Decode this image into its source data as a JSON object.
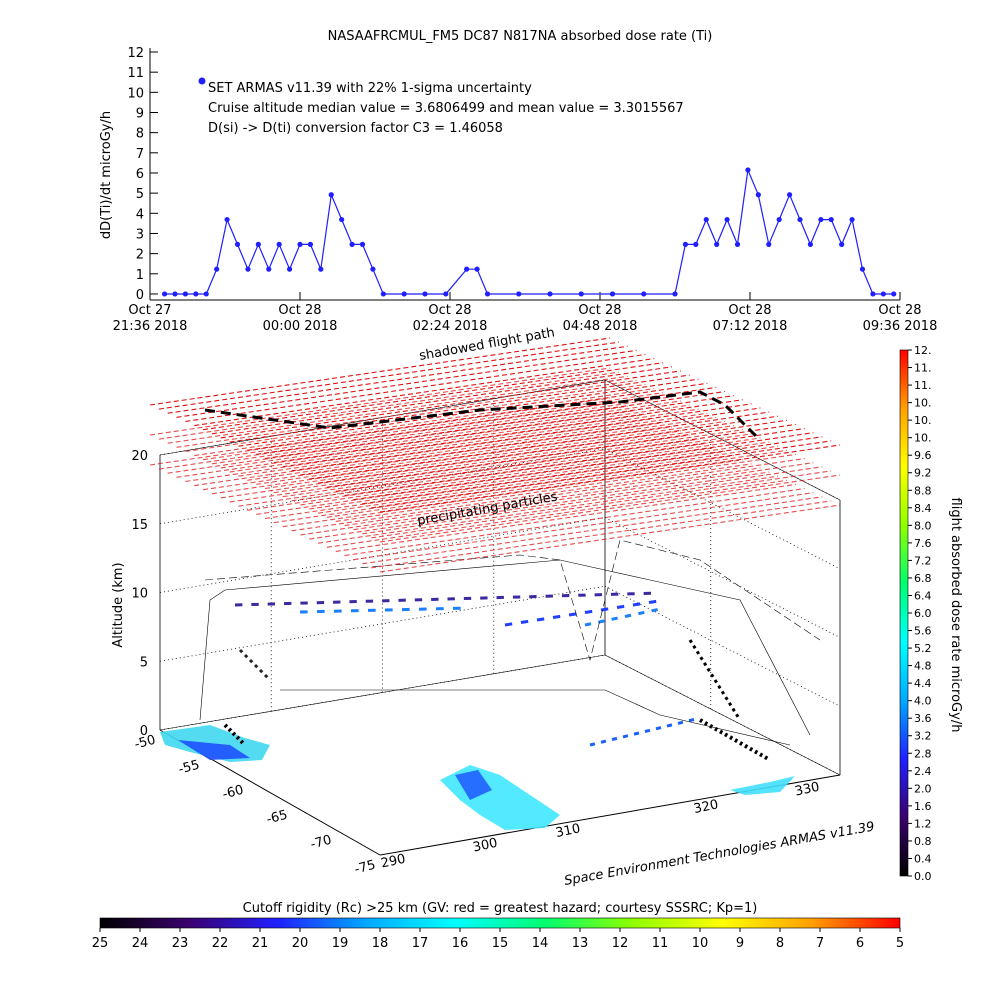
{
  "chart_data": [
    {
      "type": "line",
      "title": "NASAAFRCMUL_FM5 DC87 N817NA absorbed dose rate (Ti)",
      "y_label": "dD(Ti)/dt microGy/h",
      "annotations": [
        "SET ARMAS v11.39 with 22% 1-sigma uncertainty",
        "Cruise altitude median value = 3.6806499 and mean value = 3.3015567",
        "D(si) -> D(ti) conversion factor C3 = 1.46058"
      ],
      "color": "#1f1fff",
      "xlim": [
        "2018-10-27 21:36",
        "2018-10-28 09:36"
      ],
      "xticks": [
        {
          "value": "2018-10-27 21:36",
          "label": [
            "Oct 27",
            "21:36 2018"
          ]
        },
        {
          "value": "2018-10-28 00:00",
          "label": [
            "Oct 28",
            "00:00 2018"
          ]
        },
        {
          "value": "2018-10-28 02:24",
          "label": [
            "Oct 28",
            "02:24 2018"
          ]
        },
        {
          "value": "2018-10-28 04:48",
          "label": [
            "Oct 28",
            "04:48 2018"
          ]
        },
        {
          "value": "2018-10-28 07:12",
          "label": [
            "Oct 28",
            "07:12 2018"
          ]
        },
        {
          "value": "2018-10-28 09:36",
          "label": [
            "Oct 28",
            "09:36 2018"
          ]
        }
      ],
      "ylim": [
        -0.3,
        12
      ],
      "yticks": [
        0,
        1,
        2,
        3,
        4,
        5,
        6,
        7,
        8,
        9,
        10,
        11,
        12
      ],
      "x": [
        "2018-10-27 21:50",
        "2018-10-27 22:00",
        "2018-10-27 22:10",
        "2018-10-27 22:20",
        "2018-10-27 22:30",
        "2018-10-27 22:40",
        "2018-10-27 22:50",
        "2018-10-27 23:00",
        "2018-10-27 23:10",
        "2018-10-27 23:20",
        "2018-10-27 23:30",
        "2018-10-27 23:40",
        "2018-10-27 23:50",
        "2018-10-28 00:00",
        "2018-10-28 00:10",
        "2018-10-28 00:20",
        "2018-10-28 00:30",
        "2018-10-28 00:40",
        "2018-10-28 00:50",
        "2018-10-28 01:00",
        "2018-10-28 01:10",
        "2018-10-28 01:20",
        "2018-10-28 01:40",
        "2018-10-28 02:00",
        "2018-10-28 02:20",
        "2018-10-28 02:40",
        "2018-10-28 02:50",
        "2018-10-28 03:00",
        "2018-10-28 03:30",
        "2018-10-28 04:00",
        "2018-10-28 04:30",
        "2018-10-28 05:00",
        "2018-10-28 05:30",
        "2018-10-28 06:00",
        "2018-10-28 06:10",
        "2018-10-28 06:20",
        "2018-10-28 06:30",
        "2018-10-28 06:40",
        "2018-10-28 06:50",
        "2018-10-28 07:00",
        "2018-10-28 07:10",
        "2018-10-28 07:20",
        "2018-10-28 07:30",
        "2018-10-28 07:40",
        "2018-10-28 07:50",
        "2018-10-28 08:00",
        "2018-10-28 08:10",
        "2018-10-28 08:20",
        "2018-10-28 08:30",
        "2018-10-28 08:40",
        "2018-10-28 08:50",
        "2018-10-28 09:00",
        "2018-10-28 09:10",
        "2018-10-28 09:20",
        "2018-10-28 09:30"
      ],
      "values": [
        0,
        0,
        0,
        0,
        0,
        1.23,
        3.69,
        2.46,
        1.23,
        2.46,
        1.23,
        2.46,
        1.23,
        2.46,
        2.46,
        1.23,
        4.92,
        3.69,
        2.46,
        2.46,
        1.23,
        0,
        0,
        0,
        0,
        1.23,
        1.23,
        0,
        0,
        0,
        0,
        0,
        0,
        0,
        2.46,
        2.46,
        3.69,
        2.46,
        3.69,
        2.46,
        6.15,
        4.92,
        2.46,
        3.69,
        4.92,
        3.69,
        2.46,
        3.69,
        3.69,
        2.46,
        3.69,
        1.23,
        0,
        0,
        0
      ]
    },
    {
      "type": "scatter3d",
      "z_label": "Altitude (km)",
      "zticks": [
        0,
        5,
        10,
        15,
        20
      ],
      "lat_ticks": [
        -50,
        -55,
        -60,
        -65,
        -70,
        -75
      ],
      "lon_ticks": [
        290,
        300,
        310,
        320,
        330
      ],
      "annotations": [
        "shadowed flight path",
        "precipitating particles"
      ],
      "credit": "Space Environment Technologies ARMAS v11.39"
    },
    {
      "type": "colorbar",
      "title": "flight absorbed dose rate microGy/h",
      "colormap": [
        "#000000",
        "#3a006e",
        "#2020ff",
        "#00a8ff",
        "#00ffff",
        "#00ff70",
        "#90ff00",
        "#ffff00",
        "#ffa000",
        "#ff0000"
      ],
      "lim": [
        0,
        12
      ],
      "ticks": [
        {
          "value": 0,
          "label": "0.0"
        },
        {
          "value": 0.4,
          "label": "0.4"
        },
        {
          "value": 0.8,
          "label": "0.8"
        },
        {
          "value": 1.2,
          "label": "1.2"
        },
        {
          "value": 1.6,
          "label": "1.6"
        },
        {
          "value": 2,
          "label": "2.0"
        },
        {
          "value": 2.4,
          "label": "2.4"
        },
        {
          "value": 2.8,
          "label": "2.8"
        },
        {
          "value": 3.2,
          "label": "3.2"
        },
        {
          "value": 3.6,
          "label": "3.6"
        },
        {
          "value": 4,
          "label": "4.0"
        },
        {
          "value": 4.4,
          "label": "4.4"
        },
        {
          "value": 4.8,
          "label": "4.8"
        },
        {
          "value": 5.2,
          "label": "5.2"
        },
        {
          "value": 5.6,
          "label": "5.6"
        },
        {
          "value": 6,
          "label": "6.0"
        },
        {
          "value": 6.4,
          "label": "6.4"
        },
        {
          "value": 6.8,
          "label": "6.8"
        },
        {
          "value": 7.2,
          "label": "7.2"
        },
        {
          "value": 7.6,
          "label": "7.6"
        },
        {
          "value": 8,
          "label": "8.0"
        },
        {
          "value": 8.4,
          "label": "8.4"
        },
        {
          "value": 8.8,
          "label": "8.8"
        },
        {
          "value": 9.2,
          "label": "9.2"
        },
        {
          "value": 9.6,
          "label": "9.6"
        },
        {
          "value": 10,
          "label": "10."
        },
        {
          "value": 10.4,
          "label": "10."
        },
        {
          "value": 10.8,
          "label": "10."
        },
        {
          "value": 11.2,
          "label": "11."
        },
        {
          "value": 11.6,
          "label": "11."
        },
        {
          "value": 12,
          "label": "12."
        }
      ]
    },
    {
      "type": "colorbar",
      "title": "Cutoff rigidity (Rc) >25 km (GV: red = greatest hazard; courtesy SSSRC; Kp=1)",
      "colormap": [
        "#000000",
        "#3a006e",
        "#2020ff",
        "#00a8ff",
        "#00ffff",
        "#00ff70",
        "#90ff00",
        "#ffff00",
        "#ffa000",
        "#ff0000"
      ],
      "lim": [
        25,
        5
      ],
      "ticks": [
        25,
        24,
        23,
        22,
        21,
        20,
        19,
        18,
        17,
        16,
        15,
        14,
        13,
        12,
        11,
        10,
        9,
        8,
        7,
        6,
        5
      ]
    }
  ]
}
